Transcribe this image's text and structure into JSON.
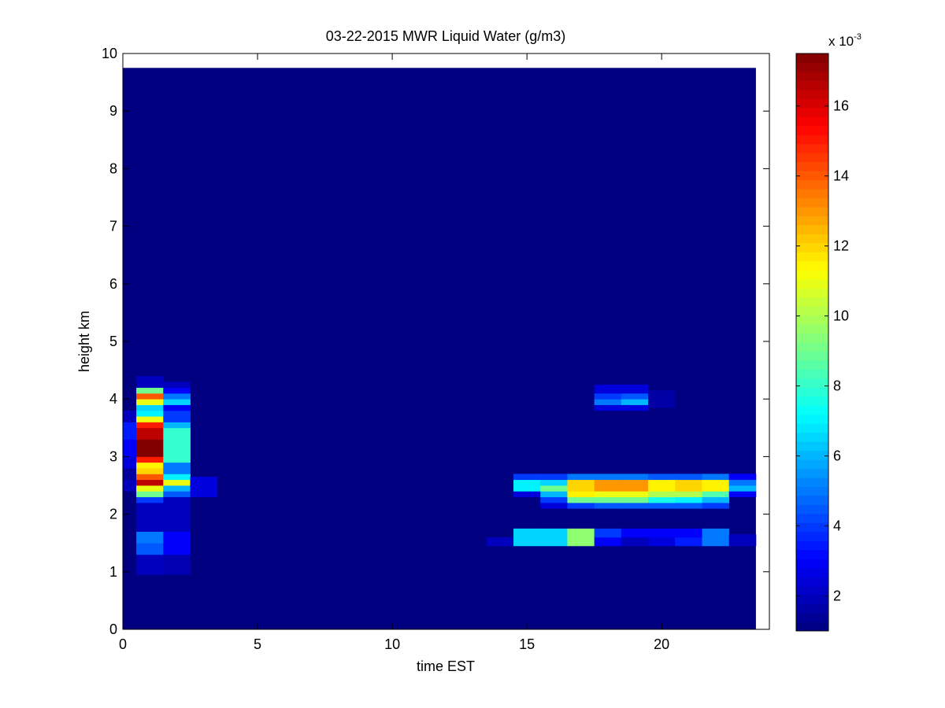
{
  "chart_data": {
    "type": "heatmap",
    "title": "03-22-2015 MWR Liquid Water (g/m3)",
    "xlabel": "time EST",
    "ylabel": "height km",
    "xlim": [
      0,
      24
    ],
    "ylim": [
      0,
      10
    ],
    "xticks": [
      "0",
      "5",
      "10",
      "15",
      "20"
    ],
    "yticks": [
      "0",
      "1",
      "2",
      "3",
      "4",
      "5",
      "6",
      "7",
      "8",
      "9",
      "10"
    ],
    "data_extent": {
      "x": [
        0,
        23.5
      ],
      "y": [
        0,
        9.75
      ]
    },
    "background_value": 1,
    "colormap": "jet",
    "colorbar": {
      "range": [
        1,
        17.5
      ],
      "ticks": [
        "2",
        "4",
        "6",
        "8",
        "10",
        "12",
        "14",
        "16"
      ],
      "multiplier": "x 10",
      "exponent": "-3"
    },
    "grid": false,
    "cells": [
      [
        0.0,
        1.0,
        2.4,
        2.6,
        2.0
      ],
      [
        0.0,
        1.0,
        2.6,
        2.8,
        1.5
      ],
      [
        0.0,
        1.0,
        2.8,
        3.0,
        2.5
      ],
      [
        0.0,
        1.0,
        3.0,
        3.3,
        3.0
      ],
      [
        0.0,
        1.0,
        3.3,
        3.6,
        3.5
      ],
      [
        0.0,
        1.0,
        3.6,
        3.8,
        2.0
      ],
      [
        0.5,
        1.5,
        0.95,
        1.3,
        2.0
      ],
      [
        0.5,
        1.5,
        1.3,
        1.5,
        4.5
      ],
      [
        0.5,
        1.5,
        1.5,
        1.7,
        5.0
      ],
      [
        0.5,
        1.5,
        1.7,
        2.2,
        2.0
      ],
      [
        0.5,
        1.5,
        2.2,
        2.3,
        4.0
      ],
      [
        0.5,
        1.5,
        2.3,
        2.4,
        9.0
      ],
      [
        0.5,
        1.5,
        2.4,
        2.5,
        11.0
      ],
      [
        0.5,
        1.5,
        2.5,
        2.6,
        16.5
      ],
      [
        0.5,
        1.5,
        2.6,
        2.7,
        14.0
      ],
      [
        0.5,
        1.5,
        2.7,
        2.8,
        12.0
      ],
      [
        0.5,
        1.5,
        2.8,
        2.9,
        11.5
      ],
      [
        0.5,
        1.5,
        2.9,
        3.0,
        15.0
      ],
      [
        0.5,
        1.5,
        3.0,
        3.3,
        17.5
      ],
      [
        0.5,
        1.5,
        3.3,
        3.5,
        16.5
      ],
      [
        0.5,
        1.5,
        3.5,
        3.6,
        15.0
      ],
      [
        0.5,
        1.5,
        3.6,
        3.7,
        11.0
      ],
      [
        0.5,
        1.5,
        3.7,
        3.8,
        7.0
      ],
      [
        0.5,
        1.5,
        3.8,
        3.9,
        6.5
      ],
      [
        0.5,
        1.5,
        3.9,
        4.0,
        11.0
      ],
      [
        0.5,
        1.5,
        4.0,
        4.1,
        14.0
      ],
      [
        0.5,
        1.5,
        4.1,
        4.2,
        9.0
      ],
      [
        0.5,
        1.5,
        4.2,
        4.4,
        2.0
      ],
      [
        1.5,
        2.5,
        0.95,
        1.3,
        1.8
      ],
      [
        1.5,
        2.5,
        1.3,
        1.7,
        3.0
      ],
      [
        1.5,
        2.5,
        1.7,
        2.3,
        2.0
      ],
      [
        1.5,
        2.5,
        2.3,
        2.4,
        4.5
      ],
      [
        1.5,
        2.5,
        2.4,
        2.5,
        6.0
      ],
      [
        1.5,
        2.5,
        2.5,
        2.6,
        11.0
      ],
      [
        1.5,
        2.5,
        2.6,
        2.7,
        7.0
      ],
      [
        1.5,
        2.5,
        2.7,
        2.9,
        5.0
      ],
      [
        1.5,
        2.5,
        2.9,
        3.5,
        8.0
      ],
      [
        1.5,
        2.5,
        3.5,
        3.6,
        6.0
      ],
      [
        1.5,
        2.5,
        3.6,
        3.8,
        4.0
      ],
      [
        1.5,
        2.5,
        3.8,
        3.9,
        3.0
      ],
      [
        1.5,
        2.5,
        3.9,
        4.0,
        6.5
      ],
      [
        1.5,
        2.5,
        4.0,
        4.1,
        5.0
      ],
      [
        1.5,
        2.5,
        4.1,
        4.2,
        3.0
      ],
      [
        1.5,
        2.5,
        4.2,
        4.3,
        2.0
      ],
      [
        2.5,
        3.5,
        2.3,
        2.65,
        2.5
      ],
      [
        13.5,
        14.5,
        1.45,
        1.6,
        2.0
      ],
      [
        14.5,
        15.5,
        1.45,
        1.75,
        6.5
      ],
      [
        14.5,
        15.5,
        2.3,
        2.4,
        2.5
      ],
      [
        14.5,
        15.5,
        2.4,
        2.6,
        7.0
      ],
      [
        14.5,
        15.5,
        2.6,
        2.7,
        4.0
      ],
      [
        15.5,
        16.5,
        1.45,
        1.75,
        6.5
      ],
      [
        15.5,
        16.5,
        2.1,
        2.2,
        2.5
      ],
      [
        15.5,
        16.5,
        2.2,
        2.3,
        4.0
      ],
      [
        15.5,
        16.5,
        2.3,
        2.4,
        6.0
      ],
      [
        15.5,
        16.5,
        2.4,
        2.5,
        9.0
      ],
      [
        15.5,
        16.5,
        2.5,
        2.6,
        6.5
      ],
      [
        15.5,
        16.5,
        2.6,
        2.7,
        4.0
      ],
      [
        16.5,
        17.5,
        1.45,
        1.75,
        9.5
      ],
      [
        16.5,
        17.5,
        2.1,
        2.2,
        4.0
      ],
      [
        16.5,
        17.5,
        2.2,
        2.3,
        9.0
      ],
      [
        16.5,
        17.5,
        2.3,
        2.4,
        11.5
      ],
      [
        16.5,
        17.5,
        2.4,
        2.6,
        12.0
      ],
      [
        16.5,
        17.5,
        2.6,
        2.7,
        5.0
      ],
      [
        17.5,
        18.5,
        1.45,
        1.6,
        3.0
      ],
      [
        17.5,
        18.5,
        1.6,
        1.75,
        4.0
      ],
      [
        17.5,
        18.5,
        2.1,
        2.2,
        4.5
      ],
      [
        17.5,
        18.5,
        2.2,
        2.3,
        9.0
      ],
      [
        17.5,
        18.5,
        2.3,
        2.4,
        11.0
      ],
      [
        17.5,
        18.5,
        2.4,
        2.6,
        13.0
      ],
      [
        17.5,
        18.5,
        2.6,
        2.7,
        5.0
      ],
      [
        17.5,
        18.5,
        3.8,
        3.9,
        2.5
      ],
      [
        17.5,
        18.5,
        3.9,
        4.0,
        5.0
      ],
      [
        17.5,
        18.5,
        4.0,
        4.1,
        4.0
      ],
      [
        17.5,
        18.5,
        4.1,
        4.25,
        2.5
      ],
      [
        18.5,
        19.5,
        1.45,
        1.6,
        2.0
      ],
      [
        18.5,
        19.5,
        1.6,
        1.75,
        3.0
      ],
      [
        18.5,
        19.5,
        2.1,
        2.2,
        4.5
      ],
      [
        18.5,
        19.5,
        2.2,
        2.3,
        9.0
      ],
      [
        18.5,
        19.5,
        2.3,
        2.4,
        11.0
      ],
      [
        18.5,
        19.5,
        2.4,
        2.6,
        13.0
      ],
      [
        18.5,
        19.5,
        2.6,
        2.7,
        5.0
      ],
      [
        18.5,
        19.5,
        3.8,
        3.9,
        2.5
      ],
      [
        18.5,
        19.5,
        3.9,
        4.0,
        6.0
      ],
      [
        18.5,
        19.5,
        4.0,
        4.1,
        4.5
      ],
      [
        18.5,
        19.5,
        4.1,
        4.25,
        2.5
      ],
      [
        19.5,
        20.5,
        1.45,
        1.6,
        2.5
      ],
      [
        19.5,
        20.5,
        1.6,
        1.75,
        3.0
      ],
      [
        19.5,
        20.5,
        2.1,
        2.2,
        4.5
      ],
      [
        19.5,
        20.5,
        2.2,
        2.3,
        7.5
      ],
      [
        19.5,
        20.5,
        2.3,
        2.4,
        10.0
      ],
      [
        19.5,
        20.5,
        2.4,
        2.6,
        11.5
      ],
      [
        19.5,
        20.5,
        2.6,
        2.7,
        4.5
      ],
      [
        19.5,
        20.5,
        3.85,
        4.15,
        1.6
      ],
      [
        20.5,
        21.5,
        1.45,
        1.6,
        3.5
      ],
      [
        20.5,
        21.5,
        1.6,
        1.75,
        3.0
      ],
      [
        20.5,
        21.5,
        2.1,
        2.2,
        4.5
      ],
      [
        20.5,
        21.5,
        2.2,
        2.3,
        7.0
      ],
      [
        20.5,
        21.5,
        2.3,
        2.4,
        10.0
      ],
      [
        20.5,
        21.5,
        2.4,
        2.6,
        12.0
      ],
      [
        20.5,
        21.5,
        2.6,
        2.7,
        4.5
      ],
      [
        21.5,
        22.5,
        1.45,
        1.75,
        5.0
      ],
      [
        21.5,
        22.5,
        2.1,
        2.2,
        4.0
      ],
      [
        21.5,
        22.5,
        2.2,
        2.3,
        6.0
      ],
      [
        21.5,
        22.5,
        2.3,
        2.4,
        8.5
      ],
      [
        21.5,
        22.5,
        2.4,
        2.6,
        11.5
      ],
      [
        21.5,
        22.5,
        2.6,
        2.7,
        5.0
      ],
      [
        22.5,
        23.5,
        1.45,
        1.65,
        2.0
      ],
      [
        22.5,
        23.5,
        2.3,
        2.4,
        3.0
      ],
      [
        22.5,
        23.5,
        2.4,
        2.5,
        6.0
      ],
      [
        22.5,
        23.5,
        2.5,
        2.6,
        5.0
      ],
      [
        22.5,
        23.5,
        2.6,
        2.7,
        3.0
      ]
    ]
  }
}
